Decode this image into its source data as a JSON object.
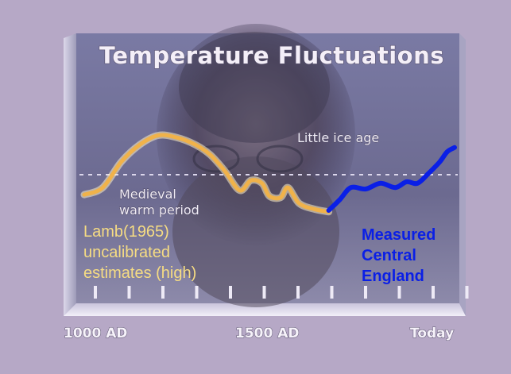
{
  "chart_data": {
    "type": "line",
    "title": "Temperature Fluctuations",
    "xlabel": "",
    "ylabel": "",
    "x_ticks": [
      "1000 AD",
      "1500 AD",
      "Today"
    ],
    "xlim": [
      1000,
      2000
    ],
    "ylim": [
      -1,
      1
    ],
    "grid": false,
    "reference_line": {
      "y": 0,
      "style": "dashed"
    },
    "period_labels": [
      {
        "text": "Medieval",
        "lines": [
          "Medieval",
          "warm period"
        ]
      },
      {
        "text": "Little ice age"
      }
    ],
    "series": [
      {
        "name": "",
        "color": "#f0b24a",
        "x": [
          1000,
          1050,
          1100,
          1150,
          1200,
          1250,
          1300,
          1340,
          1380,
          1420,
          1450,
          1480,
          1500,
          1530,
          1550,
          1580,
          1620,
          1660
        ],
        "y": [
          -0.28,
          -0.18,
          0.18,
          0.42,
          0.55,
          0.52,
          0.42,
          0.28,
          0.05,
          -0.22,
          -0.08,
          -0.12,
          -0.3,
          -0.32,
          -0.18,
          -0.4,
          -0.48,
          -0.52
        ]
      },
      {
        "name": "",
        "color": "#0a1fe6",
        "x": [
          1660,
          1690,
          1720,
          1760,
          1800,
          1840,
          1870,
          1900,
          1930,
          1960,
          1980,
          2000
        ],
        "y": [
          -0.5,
          -0.35,
          -0.18,
          -0.2,
          -0.12,
          -0.18,
          -0.1,
          -0.12,
          0.02,
          0.18,
          0.32,
          0.38
        ]
      }
    ],
    "annotations": {
      "yellow": [
        "Lamb(1965)",
        "uncalibrated",
        "estimates (high)"
      ],
      "blue": [
        "Measured",
        "Central",
        "England"
      ]
    }
  },
  "colors": {
    "background": "#b6a8c6",
    "panel": "#6f6d92",
    "yellow_text": "#f6dc83",
    "blue_text": "#0a1fe6"
  }
}
